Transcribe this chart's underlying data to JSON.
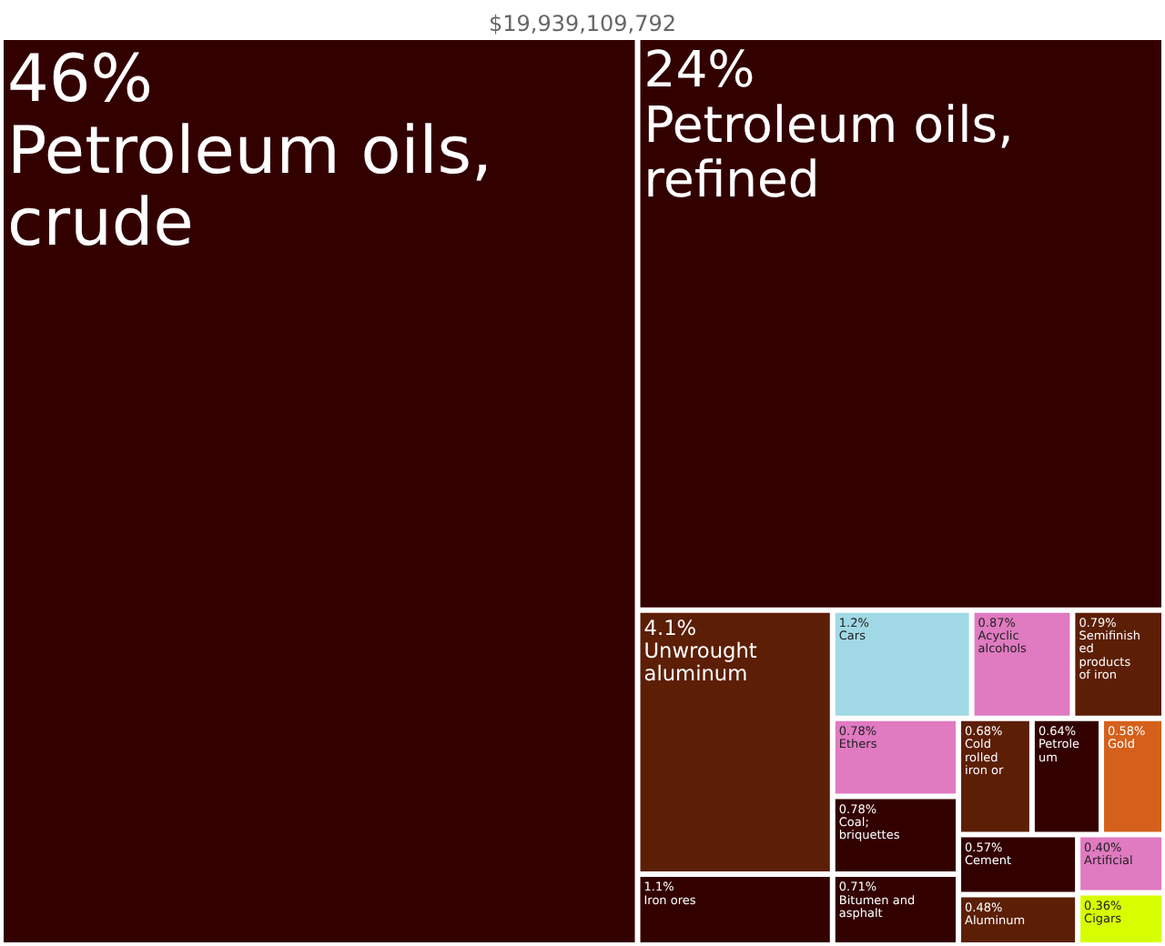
{
  "chart_data": {
    "type": "other",
    "title": "$19,939,109,792",
    "categories": [
      "Petroleum oils, crude",
      "Petroleum oils, refined",
      "Unwrought aluminum",
      "Iron ores",
      "Cars",
      "Acyclic alcohols",
      "Semifinished products of iron",
      "Ethers",
      "Coal; briquettes",
      "Bitumen and asphalt",
      "Cold rolled iron or",
      "Petroleum",
      "Gold",
      "Cement",
      "Aluminum",
      "Artificial",
      "Cigars"
    ],
    "values": [
      46,
      24,
      4.1,
      1.1,
      1.2,
      0.87,
      0.79,
      0.78,
      0.78,
      0.71,
      0.68,
      0.64,
      0.58,
      0.57,
      0.48,
      0.4,
      0.36
    ],
    "value_labels": [
      "46%",
      "24%",
      "4.1%",
      "1.1%",
      "1.2%",
      "0.87%",
      "0.79%",
      "0.78%",
      "0.78%",
      "0.71%",
      "0.68%",
      "0.64%",
      "0.58%",
      "0.57%",
      "0.48%",
      "0.40%",
      "0.36%"
    ],
    "colors": [
      "#330000",
      "#330000",
      "#5c1e05",
      "#330000",
      "#a0d9e5",
      "#e07ac1",
      "#5c1e05",
      "#e07ac1",
      "#330000",
      "#330000",
      "#5c1e05",
      "#330000",
      "#d4601b",
      "#330000",
      "#5c1e05",
      "#e07ac1",
      "#d6fe00"
    ]
  }
}
